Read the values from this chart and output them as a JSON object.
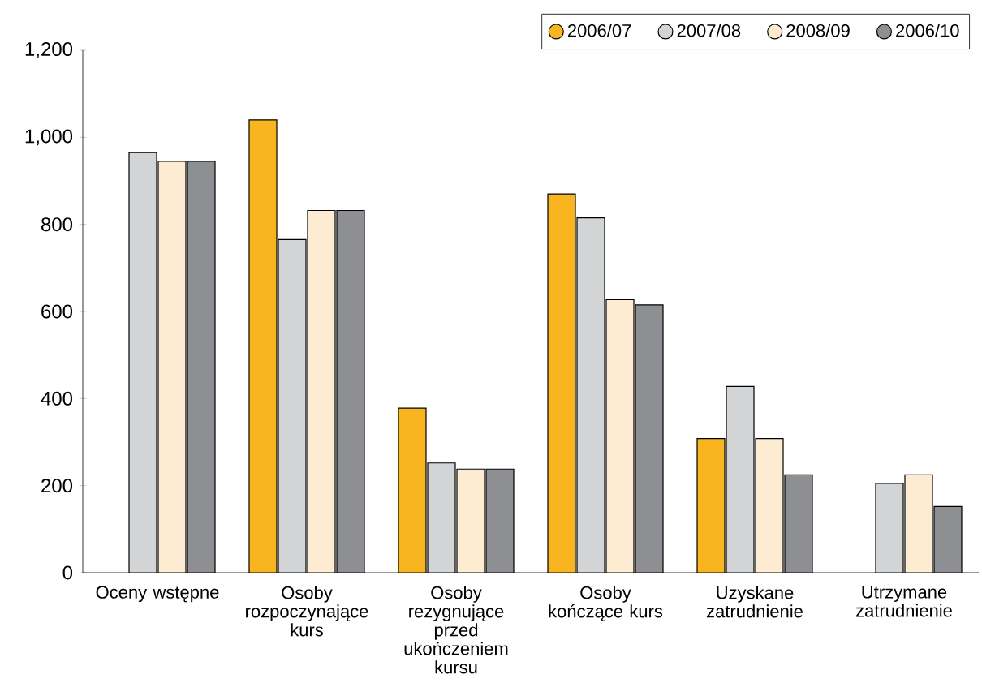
{
  "chart_data": {
    "type": "bar",
    "categories": [
      "Oceny wstępne",
      "Osoby rozpoczynające kurs",
      "Osoby rezygnujące przed ukończeniem kursu",
      "Osoby kończące kurs",
      "Uzyskane zatrudnienie",
      "Utrzymane zatrudnienie"
    ],
    "series": [
      {
        "name": "2006/07",
        "color": "#f9b520",
        "values": [
          null,
          1040,
          378,
          870,
          308,
          null
        ]
      },
      {
        "name": "2007/08",
        "color": "#d3d4d6",
        "values": [
          965,
          765,
          252,
          815,
          428,
          205
        ]
      },
      {
        "name": "2008/09",
        "color": "#fdecd2",
        "values": [
          945,
          832,
          238,
          627,
          308,
          225
        ]
      },
      {
        "name": "2006/10",
        "color": "#8e8f93",
        "values": [
          945,
          832,
          238,
          615,
          225,
          152
        ]
      }
    ],
    "ylim": [
      0,
      1200
    ],
    "yticks": [
      0,
      200,
      400,
      600,
      800,
      {
        "value": 1000,
        "label": "1,000"
      },
      {
        "value": 1200,
        "label": "1,200"
      }
    ],
    "legend": "top right",
    "marker": "circle",
    "grid": false
  }
}
